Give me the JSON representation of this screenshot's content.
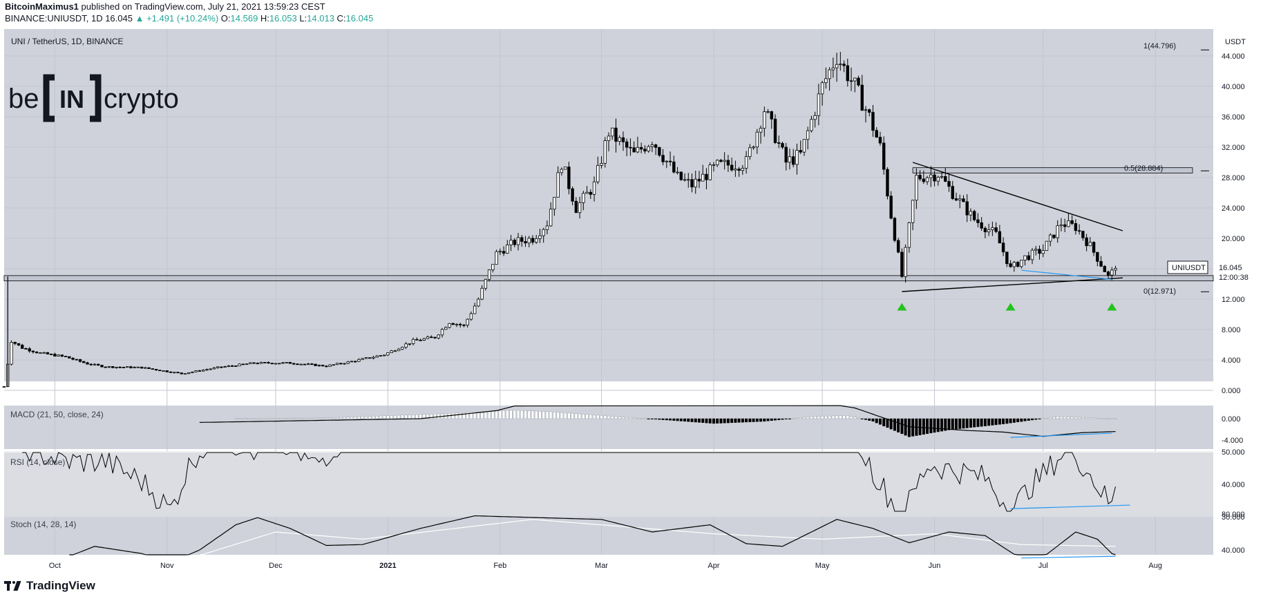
{
  "header": {
    "author": "BitcoinMaximus1",
    "published": "published on TradingView.com, July 21, 2021 13:59:23 CEST",
    "symbol_line": "BINANCE:UNIUSDT, 1D",
    "last": "16.045",
    "change": "+1.491 (+10.24%)",
    "o_label": "O:",
    "o": "14.569",
    "h_label": "H:",
    "h": "16.053",
    "l_label": "L:",
    "l": "14.013",
    "c_label": "C:",
    "c": "16.045"
  },
  "chart_title": "UNI / TetherUS, 1D, BINANCE",
  "logo_text": {
    "left": "be",
    "middle": "IN",
    "right": "crypto"
  },
  "footer": {
    "brand": "TradingView"
  },
  "colors": {
    "bg": "#cfd2da",
    "candle": "#000000",
    "accent_blue": "#2196f3",
    "up_arrow": "#22c41d",
    "rsi_band": "#dbdde3"
  },
  "chart_data": {
    "type": "candlestick",
    "symbol": "UNIUSDT",
    "currency": "USDT",
    "price_axis": [
      44,
      40,
      36,
      32,
      28,
      24,
      20,
      16,
      12,
      8,
      4,
      0
    ],
    "price_tick_labels": [
      "44.000",
      "40.000",
      "36.000",
      "32.000",
      "28.000",
      "24.000",
      "20.000",
      "16.000",
      "12.000",
      "8.000",
      "4.000",
      "0.000"
    ],
    "time_axis": [
      "Oct",
      "Nov",
      "Dec",
      "2021",
      "Feb",
      "Mar",
      "Apr",
      "May",
      "Jun",
      "Jul",
      "Aug"
    ],
    "x_range": [
      "2020-09-17",
      "2021-08-17"
    ],
    "last_price_label": "16.045",
    "countdown": "12:00:38",
    "fib_levels": [
      {
        "label": "1(44.796)",
        "value": 44.796
      },
      {
        "label": "0.5(28.884)",
        "value": 28.884
      },
      {
        "label": "0(12.971)",
        "value": 12.971
      }
    ],
    "horizontal_zone": [
      14.4,
      15.1
    ],
    "fib_zone": [
      28.6,
      29.3
    ],
    "descending_resistance": [
      [
        "2021-05-26",
        30.0
      ],
      [
        "2021-07-23",
        21.0
      ]
    ],
    "ascending_support": [
      [
        "2021-05-23",
        13.0
      ],
      [
        "2021-07-23",
        14.8
      ]
    ],
    "support_arrows": [
      [
        "2021-05-23",
        11.5
      ],
      [
        "2021-06-22",
        11.5
      ],
      [
        "2021-07-20",
        11.5
      ]
    ],
    "blue_divergence_price": [
      [
        "2021-06-25",
        15.8
      ],
      [
        "2021-07-20",
        14.6
      ]
    ],
    "anchor_points": [
      [
        "2020-09-17",
        0.5
      ],
      [
        "2020-09-19",
        6.5
      ],
      [
        "2020-09-22",
        5.6
      ],
      [
        "2020-09-27",
        4.9
      ],
      [
        "2020-10-04",
        4.4
      ],
      [
        "2020-10-10",
        3.5
      ],
      [
        "2020-10-15",
        3.1
      ],
      [
        "2020-10-25",
        3.0
      ],
      [
        "2020-11-05",
        2.2
      ],
      [
        "2020-11-15",
        3.0
      ],
      [
        "2020-11-25",
        3.6
      ],
      [
        "2020-12-05",
        3.6
      ],
      [
        "2020-12-15",
        3.2
      ],
      [
        "2020-12-22",
        3.8
      ],
      [
        "2020-12-31",
        4.7
      ],
      [
        "2021-01-08",
        6.5
      ],
      [
        "2021-01-14",
        7.0
      ],
      [
        "2021-01-18",
        9.0
      ],
      [
        "2021-01-22",
        8.5
      ],
      [
        "2021-01-26",
        12.0
      ],
      [
        "2021-01-31",
        18.0
      ],
      [
        "2021-02-05",
        19.5
      ],
      [
        "2021-02-10",
        20.0
      ],
      [
        "2021-02-14",
        22.0
      ],
      [
        "2021-02-18",
        30.0
      ],
      [
        "2021-02-22",
        24.0
      ],
      [
        "2021-02-27",
        27.0
      ],
      [
        "2021-03-03",
        34.0
      ],
      [
        "2021-03-10",
        31.0
      ],
      [
        "2021-03-15",
        33.0
      ],
      [
        "2021-03-22",
        28.0
      ],
      [
        "2021-03-26",
        27.0
      ],
      [
        "2021-04-02",
        29.5
      ],
      [
        "2021-04-10",
        30.0
      ],
      [
        "2021-04-15",
        37.0
      ],
      [
        "2021-04-21",
        30.0
      ],
      [
        "2021-04-25",
        31.0
      ],
      [
        "2021-05-01",
        40.0
      ],
      [
        "2021-05-05",
        44.0
      ],
      [
        "2021-05-10",
        40.0
      ],
      [
        "2021-05-14",
        36.0
      ],
      [
        "2021-05-17",
        32.0
      ],
      [
        "2021-05-20",
        23.0
      ],
      [
        "2021-05-23",
        15.0
      ],
      [
        "2021-05-27",
        28.0
      ],
      [
        "2021-06-02",
        28.5
      ],
      [
        "2021-06-06",
        26.0
      ],
      [
        "2021-06-12",
        22.5
      ],
      [
        "2021-06-18",
        20.5
      ],
      [
        "2021-06-22",
        16.0
      ],
      [
        "2021-06-26",
        17.5
      ],
      [
        "2021-07-01",
        18.5
      ],
      [
        "2021-07-06",
        22.0
      ],
      [
        "2021-07-10",
        21.5
      ],
      [
        "2021-07-14",
        19.0
      ],
      [
        "2021-07-19",
        15.0
      ],
      [
        "2021-07-21",
        16.045
      ]
    ],
    "indicators": [
      {
        "name": "MACD (21, 50, close, 24)",
        "axis": [
          "0.000",
          "-4.000"
        ],
        "hist_anchor_points": [
          [
            "2020-11-20",
            0.05
          ],
          [
            "2020-12-15",
            0.15
          ],
          [
            "2021-01-15",
            0.9
          ],
          [
            "2021-02-05",
            1.6
          ],
          [
            "2021-02-15",
            1.3
          ],
          [
            "2021-03-05",
            0.4
          ],
          [
            "2021-03-20",
            -0.3
          ],
          [
            "2021-04-01",
            -0.9
          ],
          [
            "2021-04-15",
            -0.5
          ],
          [
            "2021-04-28",
            0.4
          ],
          [
            "2021-05-08",
            0.6
          ],
          [
            "2021-05-15",
            -0.5
          ],
          [
            "2021-05-25",
            -3.4
          ],
          [
            "2021-06-05",
            -2.1
          ],
          [
            "2021-06-20",
            -1.0
          ],
          [
            "2021-07-05",
            0.4
          ],
          [
            "2021-07-21",
            0.0
          ]
        ],
        "line_anchor_points": [
          [
            "2020-11-10",
            -0.7
          ],
          [
            "2020-12-15",
            -0.3
          ],
          [
            "2021-01-10",
            0.0
          ],
          [
            "2021-01-31",
            1.5
          ],
          [
            "2021-02-20",
            5.0
          ],
          [
            "2021-04-01",
            2.6
          ],
          [
            "2021-04-28",
            3.3
          ],
          [
            "2021-05-10",
            2.0
          ],
          [
            "2021-05-25",
            -1.5
          ],
          [
            "2021-06-10",
            -2.2
          ],
          [
            "2021-06-20",
            -2.5
          ],
          [
            "2021-07-01",
            -3.3
          ],
          [
            "2021-07-12",
            -2.6
          ],
          [
            "2021-07-21",
            -2.4
          ]
        ],
        "divergence": [
          [
            "2021-06-22",
            -3.5
          ],
          [
            "2021-07-20",
            -2.7
          ]
        ]
      },
      {
        "name": "RSI (14, close)",
        "axis": [
          "50.000",
          "40.000",
          "30.000"
        ],
        "band": [
          30,
          50
        ],
        "anchor_points": [
          [
            "2020-09-22",
            52
          ],
          [
            "2020-09-28",
            49
          ],
          [
            "2020-10-05",
            47
          ],
          [
            "2020-10-15",
            47
          ],
          [
            "2020-10-25",
            41
          ],
          [
            "2020-11-02",
            32
          ],
          [
            "2020-11-08",
            48
          ],
          [
            "2020-11-15",
            55
          ],
          [
            "2020-11-25",
            50
          ],
          [
            "2020-12-03",
            52
          ],
          [
            "2020-12-12",
            46
          ],
          [
            "2020-12-20",
            54
          ],
          [
            "2020-12-31",
            60
          ],
          [
            "2021-05-08",
            60
          ],
          [
            "2021-05-14",
            46
          ],
          [
            "2021-05-20",
            35
          ],
          [
            "2021-05-23",
            30
          ],
          [
            "2021-05-30",
            46
          ],
          [
            "2021-06-08",
            44
          ],
          [
            "2021-06-15",
            42
          ],
          [
            "2021-06-22",
            32
          ],
          [
            "2021-06-28",
            40
          ],
          [
            "2021-07-02",
            44
          ],
          [
            "2021-07-08",
            52
          ],
          [
            "2021-07-14",
            43
          ],
          [
            "2021-07-20",
            33
          ],
          [
            "2021-07-21",
            40
          ]
        ],
        "divergence": [
          [
            "2021-06-22",
            32.5
          ],
          [
            "2021-07-25",
            33.6
          ]
        ]
      },
      {
        "name": "Stoch (14, 28, 14)",
        "axis": [
          "80.000",
          "40.000"
        ],
        "k_anchor_points": [
          [
            "2020-10-05",
            33
          ],
          [
            "2020-10-12",
            44
          ],
          [
            "2020-10-25",
            36
          ],
          [
            "2020-11-02",
            26
          ],
          [
            "2020-11-10",
            40
          ],
          [
            "2020-11-20",
            68
          ],
          [
            "2020-11-26",
            76
          ],
          [
            "2020-12-05",
            64
          ],
          [
            "2020-12-15",
            45
          ],
          [
            "2020-12-25",
            46
          ],
          [
            "2021-01-10",
            64
          ],
          [
            "2021-01-25",
            78
          ],
          [
            "2021-03-01",
            74
          ],
          [
            "2021-03-15",
            60
          ],
          [
            "2021-03-31",
            68
          ],
          [
            "2021-04-10",
            47
          ],
          [
            "2021-04-20",
            44
          ],
          [
            "2021-05-05",
            74
          ],
          [
            "2021-05-15",
            64
          ],
          [
            "2021-05-25",
            48
          ],
          [
            "2021-06-05",
            60
          ],
          [
            "2021-06-15",
            56
          ],
          [
            "2021-06-25",
            30
          ],
          [
            "2021-07-01",
            32
          ],
          [
            "2021-07-10",
            60
          ],
          [
            "2021-07-16",
            52
          ],
          [
            "2021-07-21",
            32
          ]
        ],
        "d_anchor_points": [
          [
            "2020-11-10",
            34
          ],
          [
            "2020-12-01",
            60
          ],
          [
            "2020-12-25",
            52
          ],
          [
            "2021-02-10",
            74
          ],
          [
            "2021-04-01",
            58
          ],
          [
            "2021-05-01",
            52
          ],
          [
            "2021-06-01",
            58
          ],
          [
            "2021-06-25",
            46
          ],
          [
            "2021-07-21",
            44
          ]
        ],
        "divergence": [
          [
            "2021-06-25",
            31
          ],
          [
            "2021-07-21",
            33
          ]
        ]
      }
    ]
  }
}
